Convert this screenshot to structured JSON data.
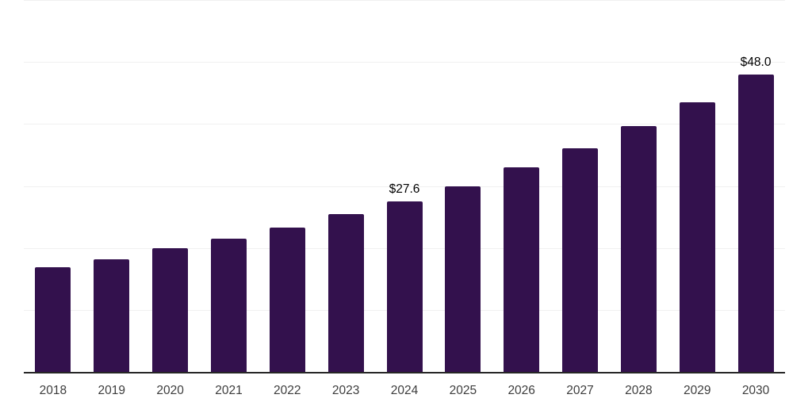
{
  "chart": {
    "background_color": "#ffffff",
    "bar_color": "#33114d",
    "gridline_color": "#f0f0f0",
    "axis_line_color": "#262626",
    "tick_label_color": "#3d3d3d",
    "value_label_color": "#000000"
  },
  "chart_data": {
    "type": "bar",
    "title": "",
    "xlabel": "",
    "ylabel": "",
    "categories": [
      "2018",
      "2019",
      "2020",
      "2021",
      "2022",
      "2023",
      "2024",
      "2025",
      "2026",
      "2027",
      "2028",
      "2029",
      "2030"
    ],
    "values": [
      17.0,
      18.3,
      20.0,
      21.6,
      23.3,
      25.5,
      27.6,
      30.0,
      33.1,
      36.1,
      39.7,
      43.5,
      48.0
    ],
    "data_labels": [
      "",
      "",
      "",
      "",
      "",
      "",
      "$27.6",
      "",
      "",
      "",
      "",
      "",
      "$48.0"
    ],
    "ylim": [
      0,
      60
    ],
    "gridline_step": 10,
    "grid": true,
    "legend": false,
    "y_tick_labels_shown": false
  }
}
